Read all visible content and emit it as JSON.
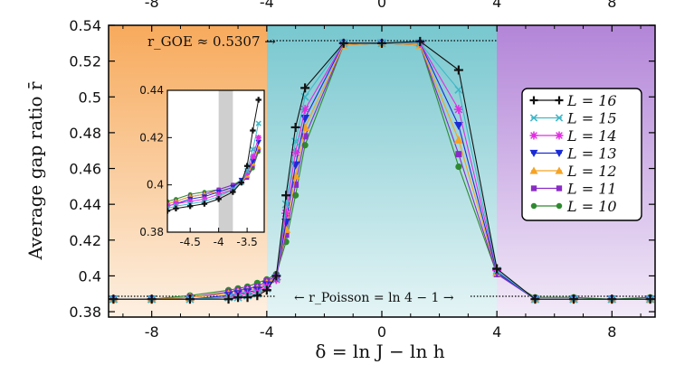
{
  "chart_data": {
    "type": "line",
    "title": "",
    "xlabel": "δ = ln J − ln h",
    "ylabel": "Average gap ratio r̄",
    "xlim": [
      -9.5,
      9.5
    ],
    "ylim": [
      0.377,
      0.54
    ],
    "xticks": [
      -8,
      -4,
      0,
      4,
      8
    ],
    "xtick_labels": [
      "-8",
      "-4",
      "0",
      "4",
      "8"
    ],
    "yticks": [
      0.38,
      0.4,
      0.42,
      0.44,
      0.46,
      0.48,
      0.5,
      0.52,
      0.54
    ],
    "ytick_labels": [
      "0.38",
      "0.4",
      "0.42",
      "0.44",
      "0.46",
      "0.48",
      "0.5",
      "0.52",
      "0.54"
    ],
    "top_tick_labels": [
      "-8",
      "-4",
      "0",
      "4",
      "8"
    ],
    "regions": [
      {
        "name": "left",
        "from": -9.5,
        "to": -4,
        "color": "#f7b165"
      },
      {
        "name": "center",
        "from": -4,
        "to": 4,
        "color": "#7fcbd0"
      },
      {
        "name": "right",
        "from": 4,
        "to": 9.5,
        "color": "#b98ad9"
      }
    ],
    "annotations": {
      "goe_label": "r_GOE ≈ 0.5307 →",
      "goe_value": 0.5307,
      "poisson_label": "← r_Poisson = ln 4 − 1 →",
      "poisson_value": 0.3863
    },
    "series": [
      {
        "name": "L = 16",
        "color": "#111111",
        "marker": "plus",
        "x": [
          -9.33,
          -8,
          -6.67,
          -5.33,
          -5,
          -4.67,
          -4.33,
          -4,
          -3.67,
          -3.33,
          -3,
          -2.67,
          -1.33,
          0,
          1.33,
          2.67,
          4,
          5.33,
          6.67,
          8,
          9.33
        ],
        "y": [
          0.387,
          0.387,
          0.387,
          0.387,
          0.388,
          0.388,
          0.389,
          0.392,
          0.4,
          0.445,
          0.483,
          0.505,
          0.53,
          0.53,
          0.531,
          0.515,
          0.404,
          0.387,
          0.387,
          0.387,
          0.387
        ]
      },
      {
        "name": "L = 15",
        "color": "#3fb8c8",
        "marker": "x",
        "x": [
          -9.33,
          -8,
          -6.67,
          -5.33,
          -5,
          -4.67,
          -4.33,
          -4,
          -3.67,
          -3.33,
          -3,
          -2.67,
          -1.33,
          0,
          1.33,
          2.67,
          4,
          5.33,
          6.67,
          8,
          9.33
        ],
        "y": [
          0.387,
          0.387,
          0.387,
          0.388,
          0.388,
          0.389,
          0.39,
          0.393,
          0.399,
          0.44,
          0.475,
          0.5,
          0.53,
          0.53,
          0.53,
          0.504,
          0.403,
          0.387,
          0.387,
          0.387,
          0.387
        ]
      },
      {
        "name": "L = 14",
        "color": "#e22de2",
        "marker": "asterisk",
        "x": [
          -9.33,
          -8,
          -6.67,
          -5.33,
          -5,
          -4.67,
          -4.33,
          -4,
          -3.67,
          -3.33,
          -3,
          -2.67,
          -1.33,
          0,
          1.33,
          2.67,
          4,
          5.33,
          6.67,
          8,
          9.33
        ],
        "y": [
          0.387,
          0.387,
          0.387,
          0.388,
          0.389,
          0.39,
          0.391,
          0.394,
          0.398,
          0.435,
          0.469,
          0.493,
          0.53,
          0.53,
          0.53,
          0.493,
          0.403,
          0.387,
          0.387,
          0.387,
          0.387
        ]
      },
      {
        "name": "L = 13",
        "color": "#1a2bd6",
        "marker": "triangle-down",
        "x": [
          -9.33,
          -8,
          -6.67,
          -5.33,
          -5,
          -4.67,
          -4.33,
          -4,
          -3.67,
          -3.33,
          -3,
          -2.67,
          -1.33,
          0,
          1.33,
          2.67,
          4,
          5.33,
          6.67,
          8,
          9.33
        ],
        "y": [
          0.387,
          0.387,
          0.387,
          0.389,
          0.39,
          0.391,
          0.392,
          0.395,
          0.398,
          0.43,
          0.462,
          0.488,
          0.53,
          0.53,
          0.53,
          0.484,
          0.402,
          0.387,
          0.387,
          0.387,
          0.387
        ]
      },
      {
        "name": "L = 12",
        "color": "#f5a323",
        "marker": "triangle-up",
        "x": [
          -9.33,
          -8,
          -6.67,
          -5.33,
          -5,
          -4.67,
          -4.33,
          -4,
          -3.67,
          -3.33,
          -3,
          -2.67,
          -1.33,
          0,
          1.33,
          2.67,
          4,
          5.33,
          6.67,
          8,
          9.33
        ],
        "y": [
          0.387,
          0.387,
          0.388,
          0.39,
          0.391,
          0.392,
          0.393,
          0.396,
          0.399,
          0.426,
          0.456,
          0.483,
          0.529,
          0.53,
          0.529,
          0.476,
          0.402,
          0.387,
          0.387,
          0.387,
          0.387
        ]
      },
      {
        "name": "L = 11",
        "color": "#8a2bc7",
        "marker": "square",
        "x": [
          -9.33,
          -8,
          -6.67,
          -5.33,
          -5,
          -4.67,
          -4.33,
          -4,
          -3.67,
          -3.33,
          -3,
          -2.67,
          -1.33,
          0,
          1.33,
          2.67,
          4,
          5.33,
          6.67,
          8,
          9.33
        ],
        "y": [
          0.387,
          0.387,
          0.388,
          0.391,
          0.392,
          0.393,
          0.394,
          0.397,
          0.4,
          0.423,
          0.451,
          0.478,
          0.529,
          0.53,
          0.529,
          0.468,
          0.401,
          0.387,
          0.387,
          0.387,
          0.387
        ]
      },
      {
        "name": "L = 10",
        "color": "#2e8a2e",
        "marker": "circle",
        "x": [
          -9.33,
          -8,
          -6.67,
          -5.33,
          -5,
          -4.67,
          -4.33,
          -4,
          -3.67,
          -3.33,
          -3,
          -2.67,
          -1.33,
          0,
          1.33,
          2.67,
          4,
          5.33,
          6.67,
          8,
          9.33
        ],
        "y": [
          0.387,
          0.387,
          0.389,
          0.392,
          0.393,
          0.394,
          0.396,
          0.398,
          0.401,
          0.419,
          0.445,
          0.473,
          0.529,
          0.53,
          0.529,
          0.461,
          0.401,
          0.388,
          0.388,
          0.387,
          0.388
        ]
      }
    ],
    "legend": {
      "position": "right",
      "entries": [
        "L = 16",
        "L = 15",
        "L = 14",
        "L = 13",
        "L = 12",
        "L = 11",
        "L = 10"
      ]
    },
    "inset": {
      "xlim": [
        -4.9,
        -3.2
      ],
      "ylim": [
        0.38,
        0.44
      ],
      "xticks": [
        -4.5,
        -4,
        -3.5
      ],
      "xtick_labels": [
        "-4.5",
        "-4",
        "-3.5"
      ],
      "yticks": [
        0.38,
        0.4,
        0.42,
        0.44
      ],
      "ytick_labels": [
        "0.38",
        "0.4",
        "0.42",
        "0.44"
      ],
      "shaded": [
        -4.0,
        -3.75
      ],
      "series": [
        {
          "name": "L = 16",
          "x": [
            -4.9,
            -4.75,
            -4.5,
            -4.25,
            -4.0,
            -3.75,
            -3.6,
            -3.5,
            -3.4,
            -3.3
          ],
          "y": [
            0.389,
            0.39,
            0.391,
            0.392,
            0.394,
            0.397,
            0.401,
            0.408,
            0.423,
            0.436
          ]
        },
        {
          "name": "L = 15",
          "x": [
            -4.9,
            -4.75,
            -4.5,
            -4.25,
            -4.0,
            -3.75,
            -3.6,
            -3.5,
            -3.4,
            -3.3
          ],
          "y": [
            0.39,
            0.391,
            0.392,
            0.393,
            0.395,
            0.398,
            0.401,
            0.406,
            0.415,
            0.426
          ]
        },
        {
          "name": "L = 14",
          "x": [
            -4.9,
            -4.75,
            -4.5,
            -4.25,
            -4.0,
            -3.75,
            -3.6,
            -3.5,
            -3.4,
            -3.3
          ],
          "y": [
            0.391,
            0.392,
            0.393,
            0.394,
            0.396,
            0.398,
            0.401,
            0.405,
            0.412,
            0.42
          ]
        },
        {
          "name": "L = 13",
          "x": [
            -4.9,
            -4.75,
            -4.5,
            -4.25,
            -4.0,
            -3.75,
            -3.6,
            -3.5,
            -3.4,
            -3.3
          ],
          "y": [
            0.391,
            0.392,
            0.394,
            0.395,
            0.397,
            0.399,
            0.402,
            0.405,
            0.41,
            0.418
          ]
        },
        {
          "name": "L = 12",
          "x": [
            -4.9,
            -4.75,
            -4.5,
            -4.25,
            -4.0,
            -3.75,
            -3.6,
            -3.5,
            -3.4,
            -3.3
          ],
          "y": [
            0.392,
            0.393,
            0.395,
            0.396,
            0.397,
            0.399,
            0.401,
            0.404,
            0.409,
            0.416
          ]
        },
        {
          "name": "L = 11",
          "x": [
            -4.9,
            -4.75,
            -4.5,
            -4.25,
            -4.0,
            -3.75,
            -3.6,
            -3.5,
            -3.4,
            -3.3
          ],
          "y": [
            0.392,
            0.393,
            0.395,
            0.396,
            0.398,
            0.4,
            0.401,
            0.403,
            0.408,
            0.415
          ]
        },
        {
          "name": "L = 10",
          "x": [
            -4.9,
            -4.75,
            -4.5,
            -4.25,
            -4.0,
            -3.75,
            -3.6,
            -3.5,
            -3.4,
            -3.3
          ],
          "y": [
            0.393,
            0.394,
            0.396,
            0.397,
            0.398,
            0.4,
            0.402,
            0.403,
            0.407,
            0.414
          ]
        }
      ]
    }
  }
}
